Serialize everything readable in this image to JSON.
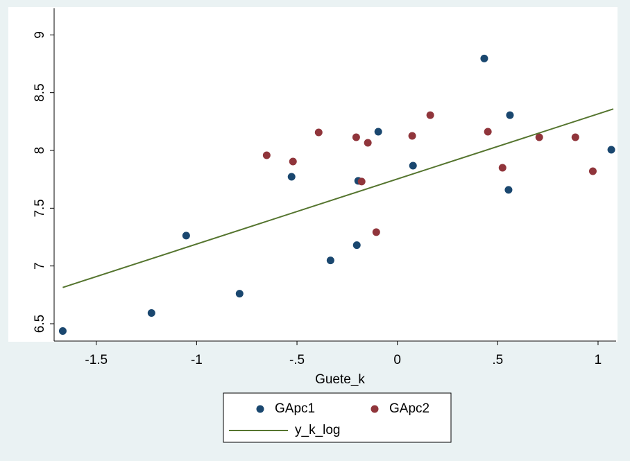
{
  "chart_data": {
    "type": "scatter",
    "x_label": "Guete_k",
    "xlim": [
      -1.71,
      1.09
    ],
    "ylim": [
      6.35,
      9.23
    ],
    "xticks": [
      {
        "value": -1.5,
        "label": "-1.5"
      },
      {
        "value": -1,
        "label": "-1"
      },
      {
        "value": -0.5,
        "label": "-.5"
      },
      0,
      {
        "value": 0.5,
        "label": ".5"
      },
      1
    ],
    "yticks": [
      6.5,
      7,
      7.5,
      8,
      8.5,
      9
    ],
    "series": [
      {
        "name": "GApc1",
        "color": "#1a476f",
        "style": "markers",
        "x": [
          -1.667,
          -1.225,
          -1.052,
          -0.786,
          -0.527,
          -0.333,
          -0.202,
          -0.195,
          -0.095,
          0.078,
          0.433,
          0.554,
          0.561,
          1.066
        ],
        "values": [
          6.437,
          6.593,
          7.263,
          6.76,
          7.772,
          7.048,
          7.18,
          7.737,
          8.162,
          7.868,
          8.796,
          7.659,
          8.305,
          8.006
        ]
      },
      {
        "name": "GApc2",
        "color": "#90353b",
        "style": "markers",
        "x": [
          -0.651,
          -0.52,
          -0.392,
          -0.205,
          -0.147,
          -0.178,
          -0.105,
          0.074,
          0.164,
          0.451,
          0.524,
          0.707,
          0.887,
          0.974
        ],
        "values": [
          7.958,
          7.904,
          8.156,
          8.114,
          8.066,
          7.731,
          7.293,
          8.126,
          8.305,
          8.162,
          7.85,
          8.114,
          8.114,
          7.82
        ]
      },
      {
        "name": "y_k_log",
        "color": "#55752f",
        "style": "line",
        "x": [
          -1.667,
          1.076
        ],
        "values": [
          6.814,
          8.359
        ]
      }
    ]
  }
}
